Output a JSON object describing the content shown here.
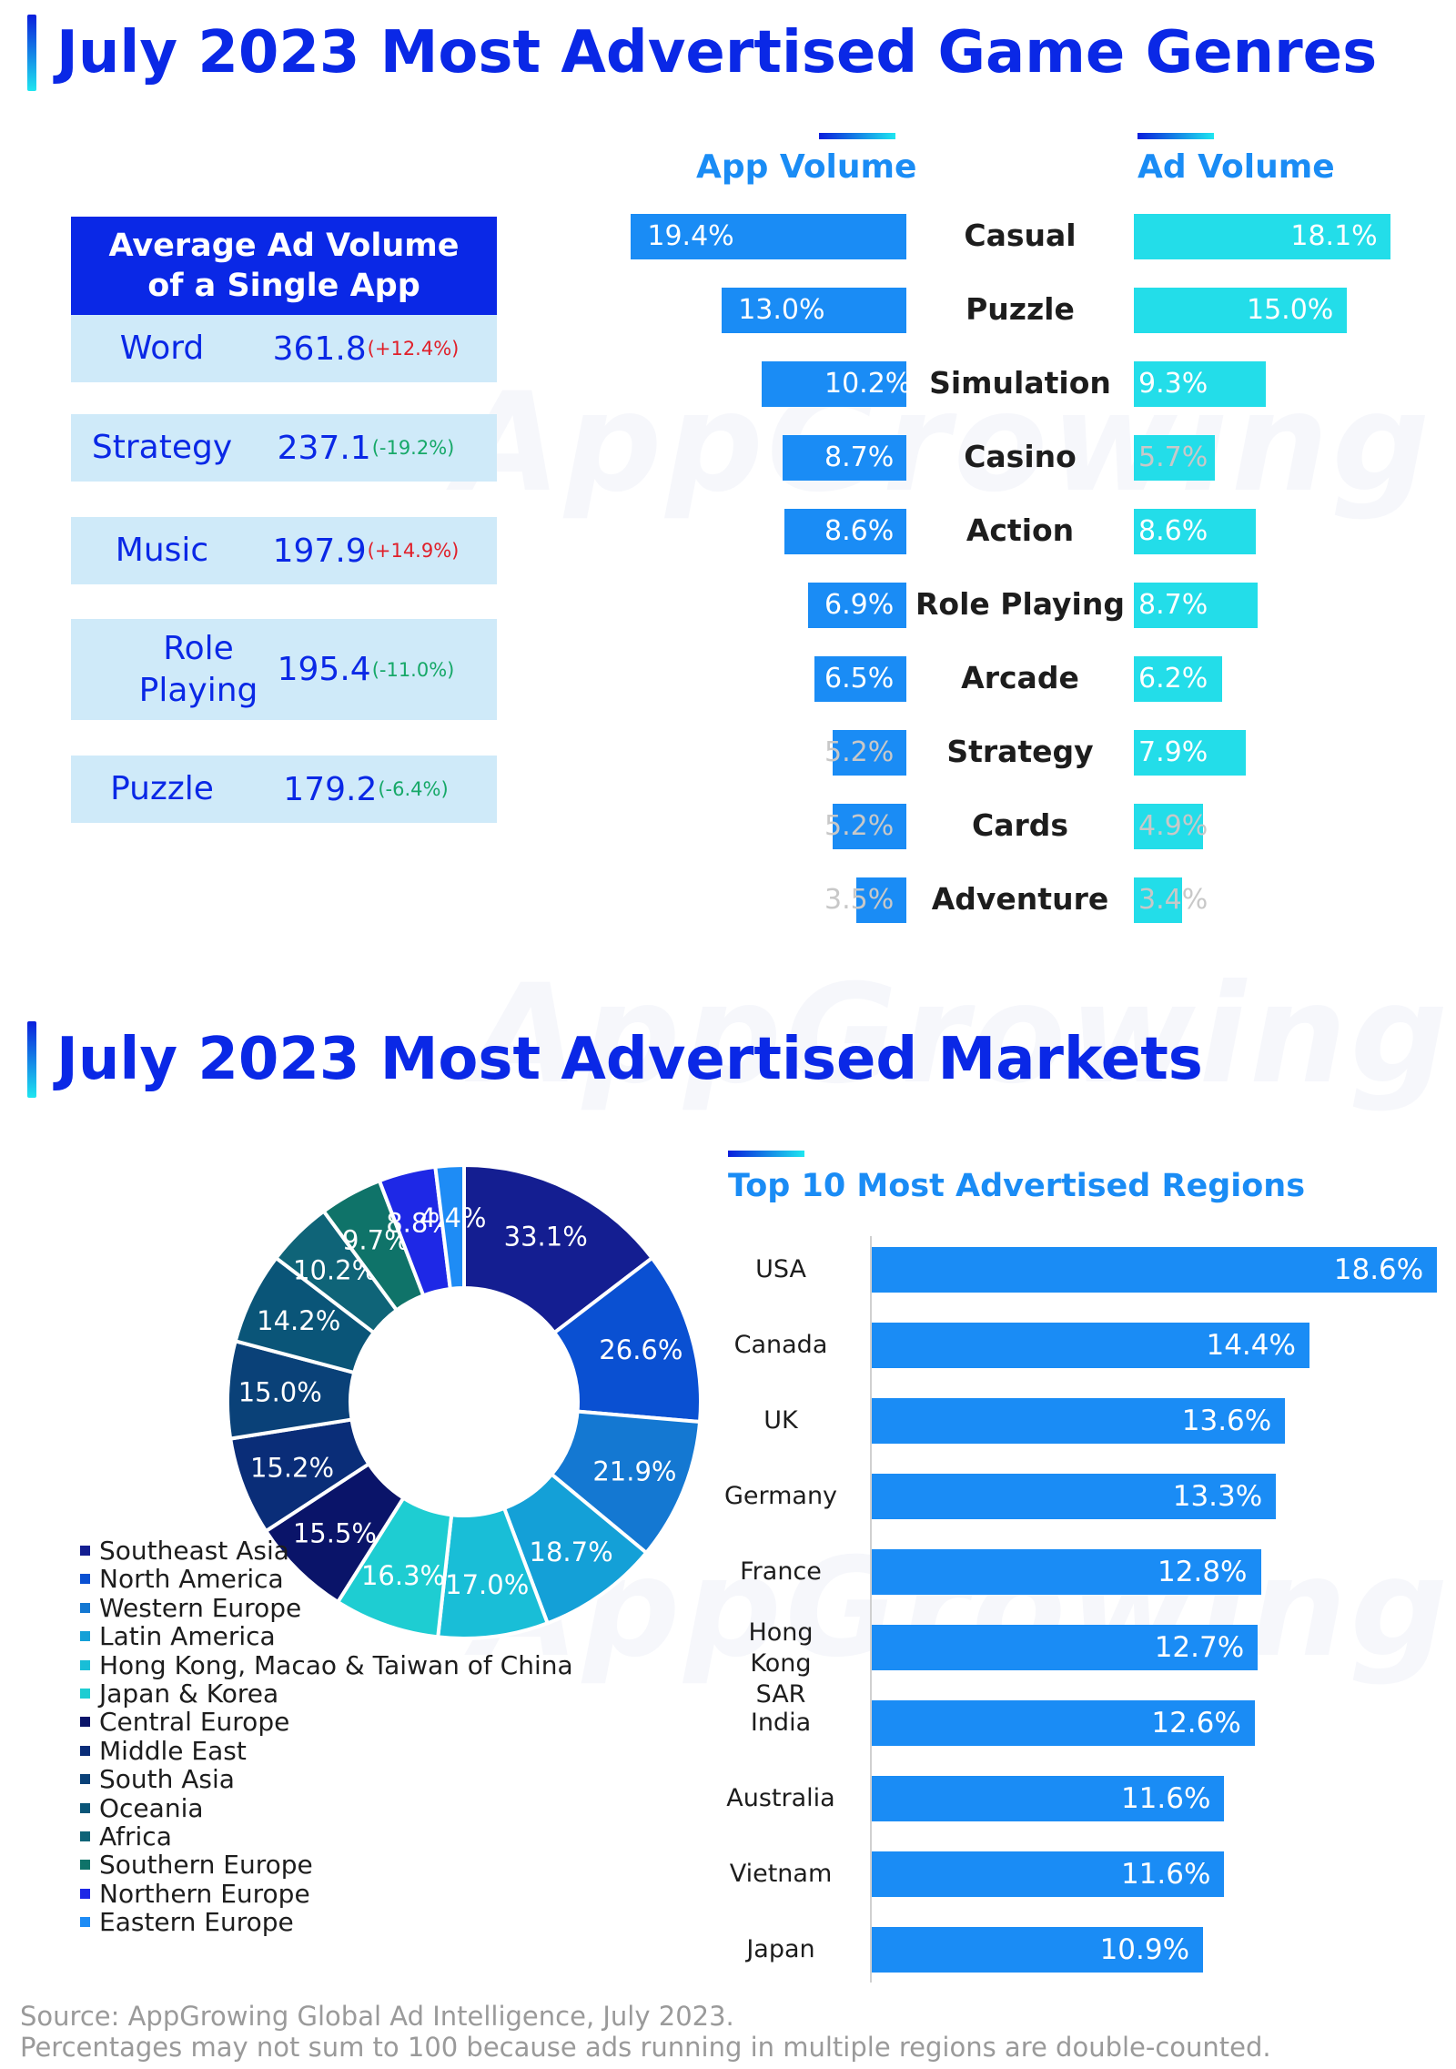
{
  "title_genres": "July 2023 Most Advertised Game Genres",
  "title_markets": "July 2023 Most Advertised Markets",
  "watermark": "AppGrowing",
  "colors": {
    "title": "#0a28e6",
    "app_bar": "#1a8cf5",
    "ad_bar": "#23dde9",
    "positive_change": "#e0202a",
    "negative_change": "#16a868"
  },
  "avg_ad_volume": {
    "title": "Average Ad Volume of a Single App",
    "rows": [
      {
        "genre": "Word",
        "value": "361.8",
        "change": "(+12.4%)",
        "direction": "up"
      },
      {
        "genre": "Strategy",
        "value": "237.1",
        "change": "(-19.2%)",
        "direction": "down"
      },
      {
        "genre": "Music",
        "value": "197.9",
        "change": "(+14.9%)",
        "direction": "up"
      },
      {
        "genre": "Role Playing",
        "value": "195.4",
        "change": "(-11.0%)",
        "direction": "down"
      },
      {
        "genre": "Puzzle",
        "value": "179.2",
        "change": "(-6.4%)",
        "direction": "down"
      }
    ]
  },
  "source": {
    "line1": "Source: AppGrowing Global Ad Intelligence, July 2023.",
    "line2": "Percentages may not sum to 100 because ads running in multiple regions are double-counted."
  },
  "chart_data": [
    {
      "type": "bar",
      "orientation": "horizontal",
      "categories": [
        "Casual",
        "Puzzle",
        "Simulation",
        "Casino",
        "Action",
        "Role Playing",
        "Arcade",
        "Strategy",
        "Cards",
        "Adventure"
      ],
      "series": [
        {
          "name": "App Volume",
          "values": [
            19.4,
            13.0,
            10.2,
            8.7,
            8.6,
            6.9,
            6.5,
            5.2,
            5.2,
            3.5
          ],
          "labels": [
            "19.4%",
            "13.0%",
            "10.2%",
            "8.7%",
            "8.6%",
            "6.9%",
            "6.5%",
            "5.2%",
            "5.2%",
            "3.5%"
          ]
        },
        {
          "name": "Ad Volume",
          "values": [
            18.1,
            15.0,
            9.3,
            5.7,
            8.6,
            8.7,
            6.2,
            7.9,
            4.9,
            3.4
          ],
          "labels": [
            "18.1%",
            "15.0%",
            "9.3%",
            "5.7%",
            "8.6%",
            "8.7%",
            "6.2%",
            "7.9%",
            "4.9%",
            "3.4%"
          ]
        }
      ]
    },
    {
      "type": "pie",
      "donut": true,
      "legend_position": "bottom-left",
      "slices": [
        {
          "name": "Southeast Asia",
          "value": 33.1,
          "label": "33.1%",
          "color": "#141e91"
        },
        {
          "name": "North America",
          "value": 26.6,
          "label": "26.6%",
          "color": "#0a50d2"
        },
        {
          "name": "Western Europe",
          "value": 21.9,
          "label": "21.9%",
          "color": "#1478d2"
        },
        {
          "name": "Latin America",
          "value": 18.7,
          "label": "18.7%",
          "color": "#14a0d7"
        },
        {
          "name": "Hong Kong, Macao & Taiwan of China",
          "value": 17.0,
          "label": "17.0%",
          "color": "#19bed7"
        },
        {
          "name": "Japan & Korea",
          "value": 16.3,
          "label": "16.3%",
          "color": "#1ecdd2"
        },
        {
          "name": "Central Europe",
          "value": 15.5,
          "label": "15.5%",
          "color": "#0a1469"
        },
        {
          "name": "Middle East",
          "value": 15.2,
          "label": "15.2%",
          "color": "#0a2d78"
        },
        {
          "name": "South Asia",
          "value": 15.0,
          "label": "15.0%",
          "color": "#0a4178"
        },
        {
          "name": "Oceania",
          "value": 14.2,
          "label": "14.2%",
          "color": "#0a5578"
        },
        {
          "name": "Africa",
          "value": 10.2,
          "label": "10.2%",
          "color": "#0f6478"
        },
        {
          "name": "Southern Europe",
          "value": 9.7,
          "label": "9.7%",
          "color": "#0f7369"
        },
        {
          "name": "Northern Europe",
          "value": 8.8,
          "label": "8.8%",
          "color": "#1e28e6"
        },
        {
          "name": "Eastern Europe",
          "value": 4.4,
          "label": "4.4%",
          "color": "#1e8cf5"
        }
      ]
    },
    {
      "type": "bar",
      "orientation": "horizontal",
      "title": "Top 10 Most Advertised Regions",
      "categories": [
        "USA",
        "Canada",
        "UK",
        "Germany",
        "France",
        "Hong Kong SAR",
        "India",
        "Australia",
        "Vietnam",
        "Japan"
      ],
      "values": [
        18.6,
        14.4,
        13.6,
        13.3,
        12.8,
        12.7,
        12.6,
        11.6,
        11.6,
        10.9
      ],
      "labels": [
        "18.6%",
        "14.4%",
        "13.6%",
        "13.3%",
        "12.8%",
        "12.7%",
        "12.6%",
        "11.6%",
        "11.6%",
        "10.9%"
      ]
    }
  ]
}
